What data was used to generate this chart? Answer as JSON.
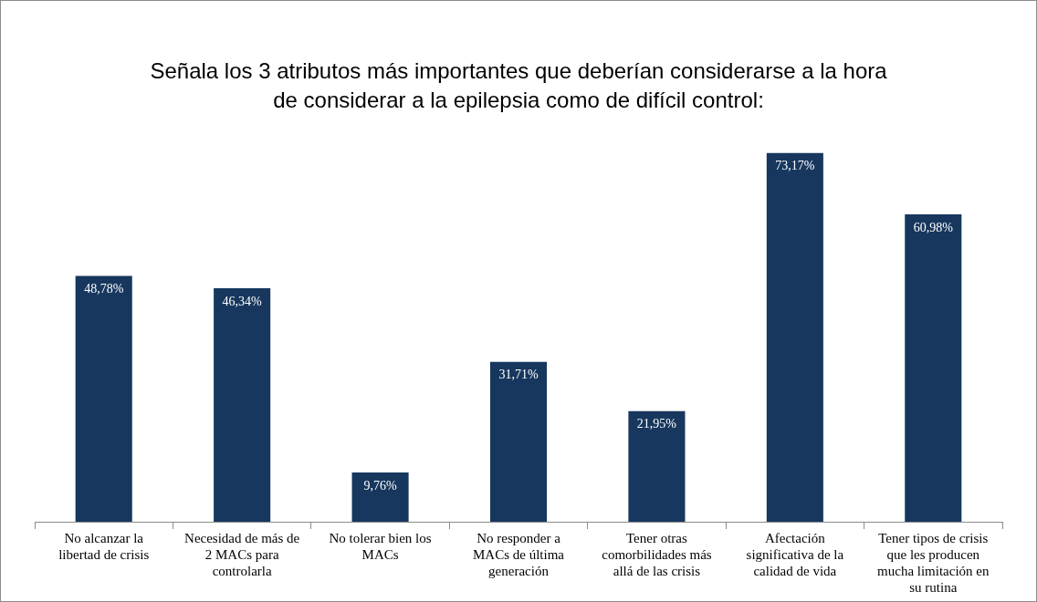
{
  "chart_data": {
    "type": "bar",
    "title": "Señala los 3 atributos más importantes que deberían considerarse a la hora de considerar a la epilepsia como de difícil control:",
    "categories": [
      "No alcanzar la libertad de crisis",
      "Necesidad de más de 2 MACs para controlarla",
      "No tolerar bien los MACs",
      "No responder a MACs de última generación",
      "Tener otras comorbilidades más allá de las crisis",
      "Afectación significativa de la calidad de vida",
      "Tener tipos de crisis que les producen mucha limitación en su rutina"
    ],
    "values": [
      48.78,
      46.34,
      9.76,
      31.71,
      21.95,
      73.17,
      60.98
    ],
    "value_labels": [
      "48,78%",
      "46,34%",
      "9,76%",
      "31,71%",
      "21,95%",
      "73,17%",
      "60,98%"
    ],
    "color": "#17375e",
    "tick_labels": "x",
    "legend": false
  }
}
